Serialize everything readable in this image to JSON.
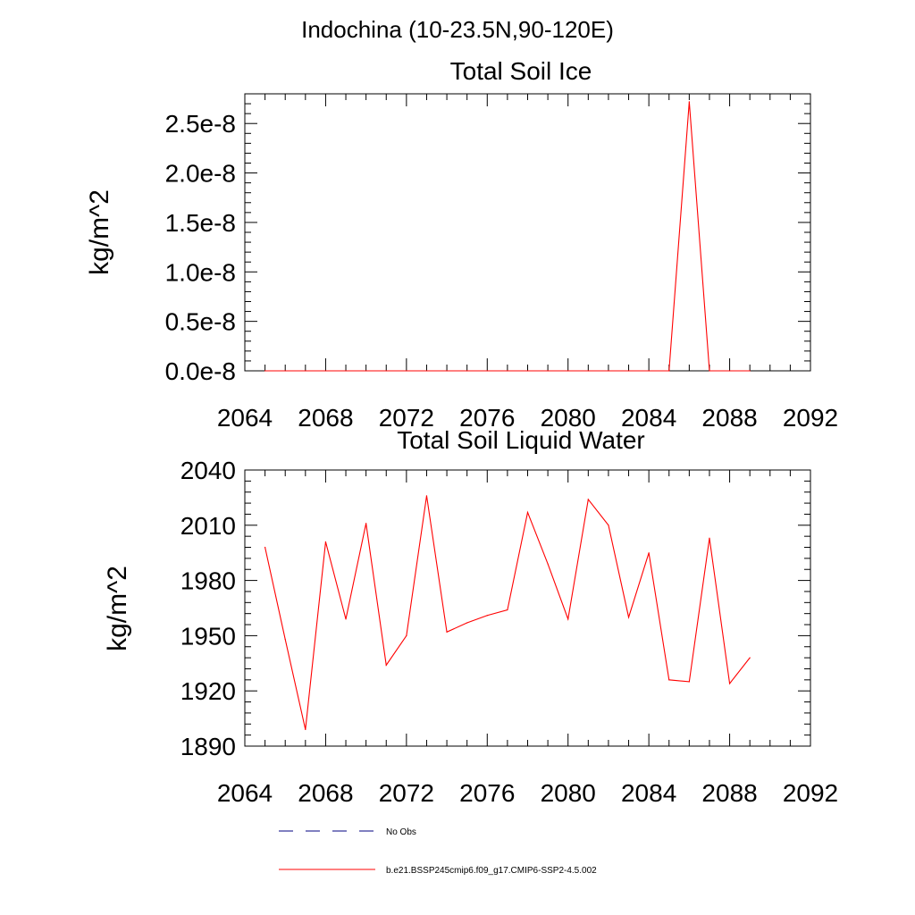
{
  "suptitle": "Indochina (10-23.5N,90-120E)",
  "chart_data": [
    {
      "type": "line",
      "title": "Total Soil Ice",
      "xlabel": "",
      "ylabel": "kg/m^2",
      "xlim": [
        2064,
        2092
      ],
      "ylim": [
        0,
        2.8e-08
      ],
      "xticks": [
        2064,
        2068,
        2072,
        2076,
        2080,
        2084,
        2088,
        2092
      ],
      "xtick_labels": [
        "2064",
        "2068",
        "2072",
        "2076",
        "2080",
        "2084",
        "2088",
        "2092"
      ],
      "yticks": [
        0,
        5e-09,
        1e-08,
        1.5e-08,
        2e-08,
        2.5e-08
      ],
      "ytick_labels": [
        "0.0e-8",
        "0.5e-8",
        "1.0e-8",
        "1.5e-8",
        "2.0e-8",
        "2.5e-8"
      ],
      "grid": false,
      "series": [
        {
          "name": "b.e21.BSSP245cmip6.f09_g17.CMIP6-SSP2-4.5.002",
          "color": "#ff0000",
          "x": [
            2065,
            2066,
            2067,
            2068,
            2069,
            2070,
            2071,
            2072,
            2073,
            2074,
            2075,
            2076,
            2077,
            2078,
            2079,
            2080,
            2081,
            2082,
            2083,
            2084,
            2085,
            2086,
            2087,
            2088,
            2089
          ],
          "values": [
            0,
            0,
            0,
            0,
            0,
            0,
            0,
            0,
            0,
            0,
            0,
            0,
            0,
            0,
            0,
            0,
            0,
            0,
            0,
            0,
            0,
            2.72e-08,
            0,
            0,
            0
          ]
        }
      ]
    },
    {
      "type": "line",
      "title": "Total Soil Liquid Water",
      "xlabel": "",
      "ylabel": "kg/m^2",
      "xlim": [
        2064,
        2092
      ],
      "ylim": [
        1890,
        2040
      ],
      "xticks": [
        2064,
        2068,
        2072,
        2076,
        2080,
        2084,
        2088,
        2092
      ],
      "xtick_labels": [
        "2064",
        "2068",
        "2072",
        "2076",
        "2080",
        "2084",
        "2088",
        "2092"
      ],
      "yticks": [
        1890,
        1920,
        1950,
        1980,
        2010,
        2040
      ],
      "ytick_labels": [
        "1890",
        "1920",
        "1950",
        "1980",
        "2010",
        "2040"
      ],
      "grid": false,
      "series": [
        {
          "name": "b.e21.BSSP245cmip6.f09_g17.CMIP6-SSP2-4.5.002",
          "color": "#ff0000",
          "x": [
            2065,
            2066,
            2067,
            2068,
            2069,
            2070,
            2071,
            2072,
            2073,
            2074,
            2075,
            2076,
            2077,
            2078,
            2079,
            2080,
            2081,
            2082,
            2083,
            2084,
            2085,
            2086,
            2087,
            2088,
            2089
          ],
          "values": [
            1998,
            1948,
            1899,
            2001,
            1959,
            2011,
            1934,
            1950,
            2026,
            1952,
            1957,
            1961,
            1964,
            2017,
            1989,
            1959,
            2024,
            2010,
            1960,
            1995,
            1926,
            1925,
            2003,
            1924,
            1938
          ]
        }
      ]
    }
  ],
  "legend": {
    "position": "bottom",
    "items": [
      {
        "label": "No Obs",
        "style": "dashed",
        "color": "#000080"
      },
      {
        "label": "b.e21.BSSP245cmip6.f09_g17.CMIP6-SSP2-4.5.002",
        "style": "solid",
        "color": "#ff0000"
      }
    ]
  }
}
